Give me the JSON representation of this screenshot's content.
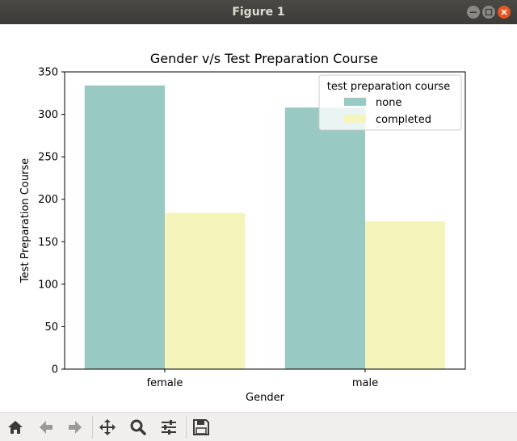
{
  "window": {
    "title": "Figure 1"
  },
  "toolbar": {
    "buttons": [
      {
        "name": "home-button",
        "icon": "home-icon"
      },
      {
        "name": "back-button",
        "icon": "arrow-left-icon"
      },
      {
        "name": "forward-button",
        "icon": "arrow-right-icon"
      },
      {
        "name": "pan-button",
        "icon": "move-icon"
      },
      {
        "name": "zoom-button",
        "icon": "magnifier-icon"
      },
      {
        "name": "configure-subplots-button",
        "icon": "sliders-icon"
      },
      {
        "name": "save-button",
        "icon": "floppy-disk-icon"
      }
    ]
  },
  "chart_data": {
    "type": "bar",
    "title": "Gender v/s Test Preparation Course",
    "xlabel": "Gender",
    "ylabel": "Test Preparation Course",
    "categories": [
      "female",
      "male"
    ],
    "series": [
      {
        "name": "none",
        "values": [
          334,
          308
        ],
        "color": "#98c9c2"
      },
      {
        "name": "completed",
        "values": [
          184,
          174
        ],
        "color": "#f5f5bb"
      }
    ],
    "ylim": [
      0,
      350
    ],
    "yticks": [
      0,
      50,
      100,
      150,
      200,
      250,
      300,
      350
    ],
    "legend": {
      "title": "test preparation course",
      "placement": "top-right"
    },
    "grid": false
  }
}
